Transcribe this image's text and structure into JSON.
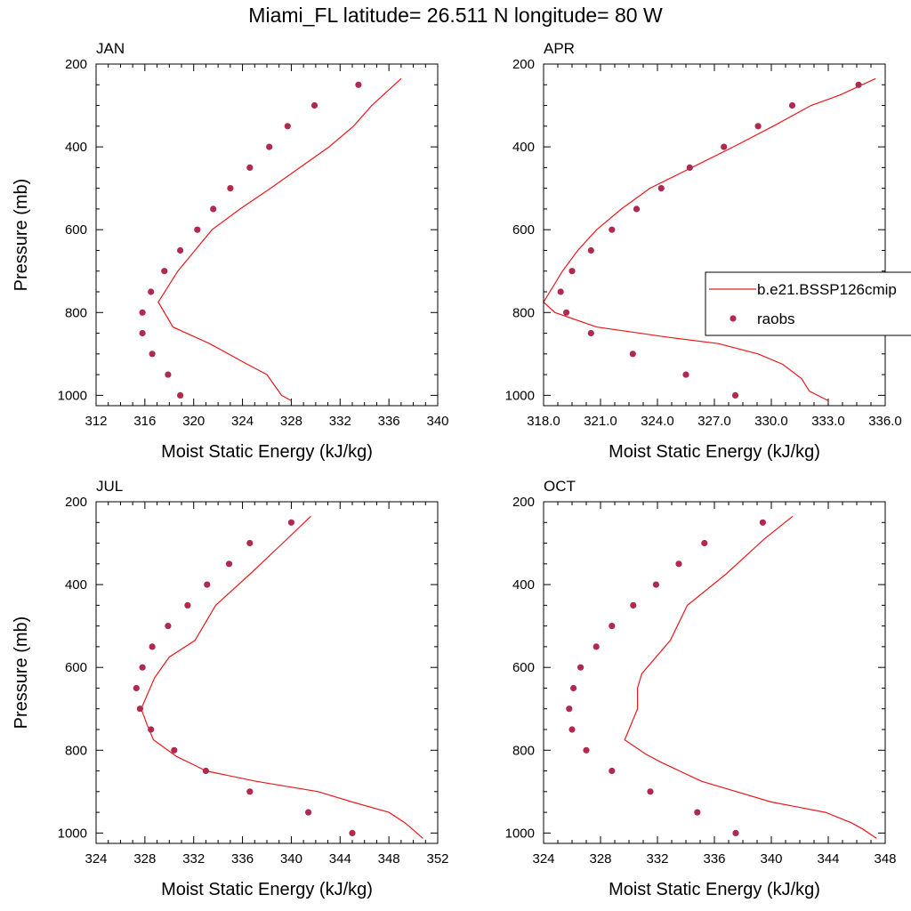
{
  "title": "Miami_FL  latitude= 26.511 N longitude= 80 W",
  "legend": {
    "position": "right of APR panel",
    "model_label": "b.e21.BSSP126cmip",
    "obs_label": "raobs"
  },
  "colors": {
    "model_line": "#e8191d",
    "obs_marker": "#b02a4f",
    "axes": "#000000"
  },
  "chart_data": [
    {
      "type": "line",
      "panel": "JAN",
      "xlabel": "Moist Static Energy (kJ/kg)",
      "ylabel": "Pressure (mb)",
      "xlim": [
        312,
        340
      ],
      "ylim": [
        200,
        1025
      ],
      "y_inverted": true,
      "xticks": [
        312,
        316,
        320,
        324,
        328,
        332,
        336,
        340
      ],
      "xtick_labels": [
        "312",
        "316",
        "320",
        "324",
        "328",
        "332",
        "336",
        "340"
      ],
      "yticks": [
        200,
        400,
        600,
        800,
        1000
      ],
      "series": [
        {
          "kind": "line",
          "x": [
            328.0,
            327.2,
            326.0,
            324.4,
            321.3,
            318.3,
            317.1,
            318.7,
            320.1,
            321.5,
            323.8,
            326.3,
            328.7,
            331.1,
            333.1,
            334.6,
            337.0
          ],
          "y": [
            1013,
            1000,
            950,
            925,
            875,
            835,
            775,
            700,
            650,
            600,
            550,
            500,
            450,
            400,
            350,
            300,
            235
          ]
        },
        {
          "kind": "scatter",
          "x": [
            318.9,
            317.9,
            316.6,
            315.8,
            315.8,
            316.5,
            317.6,
            318.9,
            320.3,
            321.6,
            323.0,
            324.6,
            326.2,
            327.7,
            329.9,
            333.5
          ],
          "y": [
            1000,
            950,
            900,
            850,
            800,
            750,
            700,
            650,
            600,
            550,
            500,
            450,
            400,
            350,
            300,
            250
          ]
        }
      ]
    },
    {
      "type": "line",
      "panel": "APR",
      "xlabel": "Moist Static Energy (kJ/kg)",
      "ylabel": "",
      "xlim": [
        318,
        336
      ],
      "ylim": [
        200,
        1025
      ],
      "y_inverted": true,
      "xticks": [
        318,
        321,
        324,
        327,
        330,
        333,
        336
      ],
      "xtick_labels": [
        "318.0",
        "321.0",
        "324.0",
        "327.0",
        "330.0",
        "333.0",
        "336.0"
      ],
      "yticks": [
        200,
        400,
        600,
        800,
        1000
      ],
      "series": [
        {
          "kind": "line",
          "x": [
            333.0,
            332.0,
            331.6,
            330.6,
            329.3,
            327.2,
            324.6,
            320.8,
            318.6,
            318.0,
            319.0,
            319.8,
            320.8,
            322.1,
            323.6,
            325.8,
            328.0,
            330.1,
            332.1,
            333.6,
            335.5
          ],
          "y": [
            1013,
            990,
            960,
            925,
            900,
            875,
            860,
            835,
            800,
            775,
            700,
            650,
            600,
            550,
            500,
            450,
            400,
            350,
            300,
            275,
            235
          ]
        },
        {
          "kind": "scatter",
          "x": [
            328.1,
            325.5,
            322.7,
            320.5,
            319.2,
            318.9,
            319.5,
            320.5,
            321.6,
            322.9,
            324.2,
            325.7,
            327.5,
            329.3,
            331.1,
            334.6
          ],
          "y": [
            1000,
            950,
            900,
            850,
            800,
            750,
            700,
            650,
            600,
            550,
            500,
            450,
            400,
            350,
            300,
            250
          ]
        }
      ]
    },
    {
      "type": "line",
      "panel": "JUL",
      "xlabel": "Moist Static Energy (kJ/kg)",
      "ylabel": "Pressure (mb)",
      "xlim": [
        324,
        352
      ],
      "ylim": [
        200,
        1025
      ],
      "y_inverted": true,
      "xticks": [
        324,
        328,
        332,
        336,
        340,
        344,
        348,
        352
      ],
      "xtick_labels": [
        "324",
        "328",
        "332",
        "336",
        "340",
        "344",
        "348",
        "352"
      ],
      "yticks": [
        200,
        400,
        600,
        800,
        1000
      ],
      "series": [
        {
          "kind": "line",
          "x": [
            350.8,
            349.9,
            349.3,
            348.0,
            345.0,
            342.2,
            337.1,
            333.0,
            332.0,
            330.6,
            328.7,
            328.2,
            327.7,
            328.8,
            330.0,
            332.1,
            333.8,
            336.6,
            339.3,
            341.6
          ],
          "y": [
            1013,
            990,
            975,
            950,
            925,
            900,
            875,
            850,
            835,
            815,
            775,
            740,
            700,
            625,
            575,
            535,
            450,
            375,
            300,
            235
          ]
        },
        {
          "kind": "scatter",
          "x": [
            345.0,
            341.4,
            336.6,
            333.0,
            330.4,
            328.5,
            327.6,
            327.3,
            327.8,
            328.6,
            329.9,
            331.5,
            333.1,
            334.9,
            336.6,
            340.0
          ],
          "y": [
            1000,
            950,
            900,
            850,
            800,
            750,
            700,
            650,
            600,
            550,
            500,
            450,
            400,
            350,
            300,
            250
          ]
        }
      ]
    },
    {
      "type": "line",
      "panel": "OCT",
      "xlabel": "Moist Static Energy (kJ/kg)",
      "ylabel": "",
      "xlim": [
        324,
        348
      ],
      "ylim": [
        200,
        1025
      ],
      "y_inverted": true,
      "xticks": [
        324,
        328,
        332,
        336,
        340,
        344,
        348
      ],
      "xtick_labels": [
        "324",
        "328",
        "332",
        "336",
        "340",
        "344",
        "348"
      ],
      "yticks": [
        200,
        400,
        600,
        800,
        1000
      ],
      "series": [
        {
          "kind": "line",
          "x": [
            347.4,
            346.4,
            345.6,
            343.8,
            340.0,
            335.1,
            332.3,
            331.2,
            329.7,
            330.6,
            330.6,
            330.9,
            332.9,
            334.1,
            336.8,
            339.5,
            341.5
          ],
          "y": [
            1013,
            990,
            975,
            950,
            925,
            875,
            830,
            810,
            775,
            700,
            650,
            615,
            535,
            450,
            375,
            290,
            235
          ]
        },
        {
          "kind": "scatter",
          "x": [
            337.5,
            334.8,
            331.5,
            328.8,
            327.0,
            326.0,
            325.8,
            326.1,
            326.6,
            327.7,
            328.8,
            330.3,
            331.9,
            333.5,
            335.3,
            339.4
          ],
          "y": [
            1000,
            950,
            900,
            850,
            800,
            750,
            700,
            650,
            600,
            550,
            500,
            450,
            400,
            350,
            300,
            250
          ]
        }
      ]
    }
  ]
}
